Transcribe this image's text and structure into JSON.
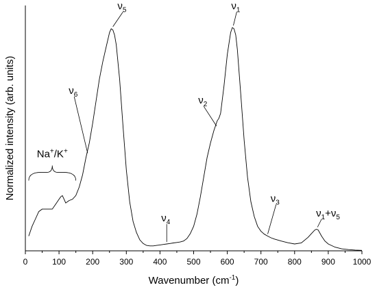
{
  "chart_data": {
    "type": "line",
    "title": "",
    "xlabel_main": "Wavenumber (cm",
    "xlabel_sup": "-1",
    "xlabel_end": ")",
    "ylabel": "Normalized intensity (arb. units)",
    "xlim": [
      0,
      1000
    ],
    "ylim": [
      0,
      1
    ],
    "x_ticks": [
      0,
      100,
      200,
      300,
      400,
      500,
      600,
      700,
      800,
      900,
      1000
    ],
    "x_tick_labels": [
      "0",
      "100",
      "200",
      "300",
      "400",
      "500",
      "600",
      "700",
      "800",
      "900",
      "1000"
    ],
    "y_ticks_shown": false,
    "grid": false,
    "series": [
      {
        "x": [
          10,
          20,
          30,
          40,
          50,
          60,
          70,
          80,
          90,
          100,
          105,
          110,
          115,
          120,
          125,
          130,
          140,
          150,
          160,
          170,
          180,
          190,
          200,
          210,
          220,
          230,
          240,
          250,
          255,
          260,
          265,
          270,
          280,
          290,
          300,
          310,
          320,
          330,
          340,
          350,
          360,
          370,
          380,
          390,
          400,
          410,
          420,
          430,
          440,
          450,
          460,
          470,
          480,
          490,
          500,
          510,
          520,
          530,
          540,
          550,
          560,
          570,
          575,
          580,
          590,
          600,
          610,
          615,
          620,
          625,
          630,
          640,
          650,
          660,
          670,
          680,
          690,
          700,
          710,
          720,
          730,
          740,
          760,
          780,
          800,
          820,
          840,
          850,
          860,
          865,
          870,
          880,
          890,
          900,
          920,
          940,
          960,
          980,
          1000
        ],
        "y": [
          0.06,
          0.1,
          0.13,
          0.16,
          0.17,
          0.17,
          0.17,
          0.17,
          0.19,
          0.21,
          0.22,
          0.225,
          0.21,
          0.195,
          0.2,
          0.205,
          0.21,
          0.225,
          0.26,
          0.31,
          0.38,
          0.44,
          0.52,
          0.61,
          0.7,
          0.77,
          0.83,
          0.89,
          0.905,
          0.9,
          0.88,
          0.84,
          0.7,
          0.51,
          0.33,
          0.2,
          0.12,
          0.075,
          0.045,
          0.03,
          0.022,
          0.02,
          0.02,
          0.022,
          0.024,
          0.026,
          0.028,
          0.03,
          0.032,
          0.034,
          0.036,
          0.04,
          0.05,
          0.07,
          0.1,
          0.15,
          0.22,
          0.3,
          0.38,
          0.44,
          0.49,
          0.53,
          0.54,
          0.56,
          0.67,
          0.8,
          0.89,
          0.91,
          0.905,
          0.88,
          0.82,
          0.64,
          0.45,
          0.3,
          0.2,
          0.14,
          0.1,
          0.08,
          0.068,
          0.06,
          0.053,
          0.048,
          0.04,
          0.033,
          0.028,
          0.032,
          0.055,
          0.07,
          0.085,
          0.088,
          0.085,
          0.06,
          0.04,
          0.028,
          0.015,
          0.008,
          0.005,
          0.003,
          0.002
        ]
      }
    ],
    "annotations": [
      {
        "base": "ν",
        "sub": "5",
        "x": 260,
        "y": 0.905,
        "tx": 290,
        "ty": 0.985
      },
      {
        "base": "ν",
        "sub": "1",
        "x": 618,
        "y": 0.91,
        "tx": 628,
        "ty": 0.985
      },
      {
        "base": "ν",
        "sub": "6",
        "x": 185,
        "y": 0.39,
        "tx": 145,
        "ty": 0.64
      },
      {
        "base": "ν",
        "sub": "2",
        "x": 568,
        "y": 0.5,
        "tx": 530,
        "ty": 0.6
      },
      {
        "base": "ν",
        "sub": "4",
        "x": 420,
        "y": 0.028,
        "tx": 420,
        "ty": 0.12
      },
      {
        "base": "ν",
        "sub": "3",
        "x": 720,
        "y": 0.06,
        "tx": 745,
        "ty": 0.2
      },
      {
        "base": "ν",
        "sub": "1",
        "base2": "+ν",
        "sub2": "5",
        "x": 868,
        "y": 0.088,
        "tx": 880,
        "ty": 0.14
      }
    ],
    "region_label": {
      "na": "Na",
      "sup1": "+",
      "slash": "/K",
      "sup2": "+",
      "x_from": 10,
      "x_to": 150
    }
  }
}
